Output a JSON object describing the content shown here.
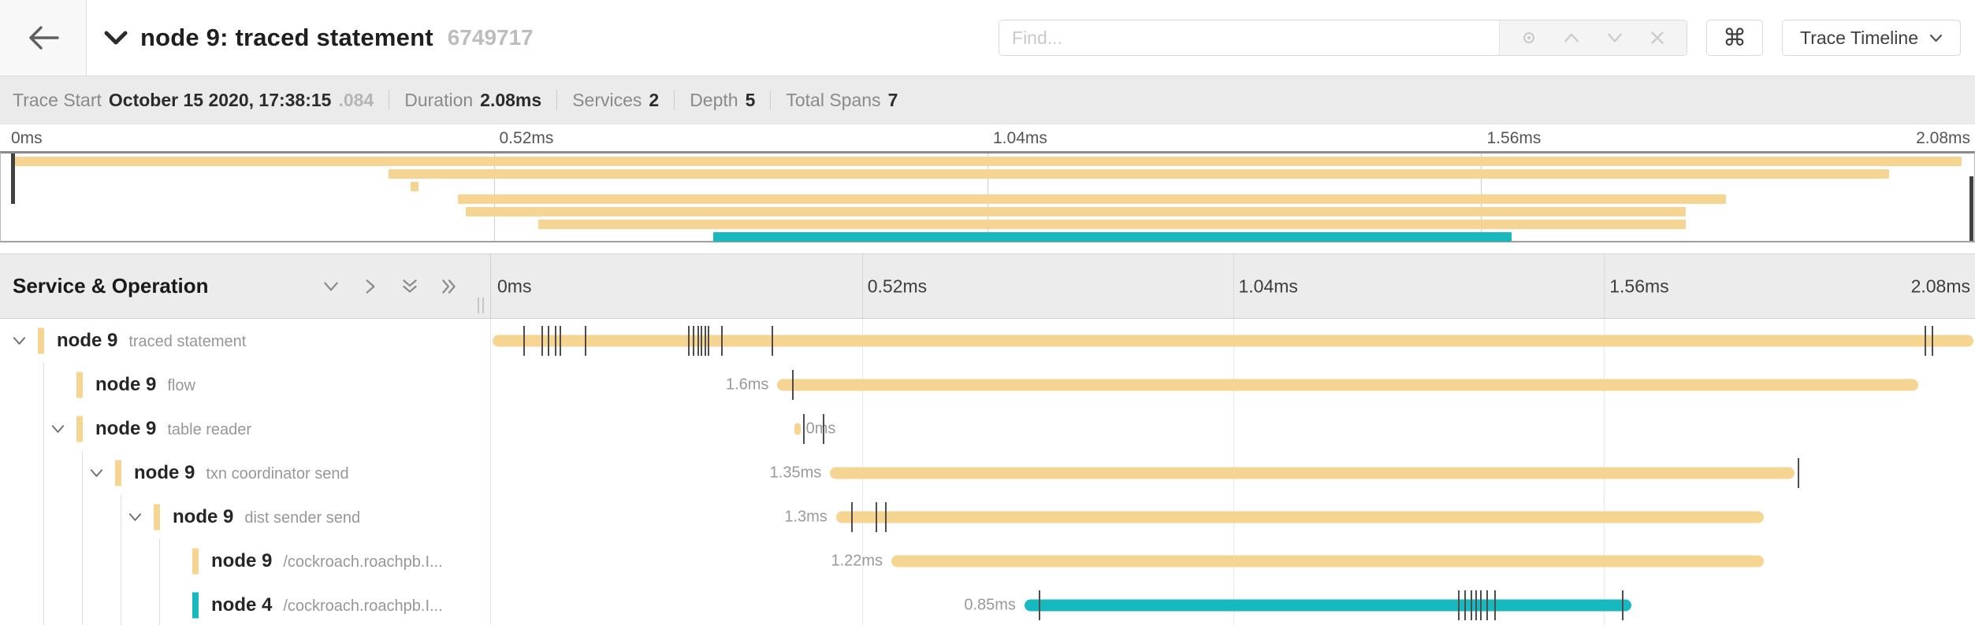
{
  "header": {
    "back_icon": "arrow-left",
    "collapse_icon": "chevron-down",
    "title": "node 9: traced statement",
    "trace_id": "6749717",
    "find_placeholder": "Find...",
    "find_tools": [
      "locate",
      "up",
      "down",
      "close"
    ],
    "shortcut_label": "⌘",
    "view_label": "Trace Timeline"
  },
  "summary": [
    {
      "label": "Trace Start",
      "value": "October 15 2020, 17:38:15",
      "suffix": ".084"
    },
    {
      "label": "Duration",
      "value": "2.08ms"
    },
    {
      "label": "Services",
      "value": "2"
    },
    {
      "label": "Depth",
      "value": "5"
    },
    {
      "label": "Total Spans",
      "value": "7"
    }
  ],
  "axis_ticks": [
    "0ms",
    "0.52ms",
    "1.04ms",
    "1.56ms",
    "2.08ms"
  ],
  "timeline": {
    "left_header": "Service & Operation",
    "tools": [
      "collapse-one",
      "expand-one",
      "collapse-all",
      "expand-all"
    ]
  },
  "colors": {
    "yellow": "#F5D591",
    "teal": "#17B8BE",
    "tick": "#4d4d4d"
  },
  "spans": [
    {
      "service": "node 9",
      "operation": "traced statement",
      "depth": 0,
      "toggle": "down",
      "color": "yellow",
      "duration": "",
      "label_side": "none",
      "t0": 0.001,
      "t1": 0.999,
      "ticks": [
        0.022,
        0.034,
        0.038,
        0.043,
        0.046,
        0.063,
        0.133,
        0.136,
        0.139,
        0.141,
        0.144,
        0.146,
        0.155,
        0.189,
        0.966,
        0.971
      ]
    },
    {
      "service": "node 9",
      "operation": "flow",
      "depth": 1,
      "toggle": "none",
      "color": "yellow",
      "duration": "1.6ms",
      "label_side": "left",
      "t0": 0.193,
      "t1": 0.962,
      "ticks": [
        0.203
      ]
    },
    {
      "service": "node 9",
      "operation": "table reader",
      "depth": 1,
      "toggle": "down",
      "color": "yellow",
      "duration": "0ms",
      "label_side": "right",
      "t0": 0.2045,
      "t1": 0.2085,
      "ticks": [
        0.2105,
        0.2235
      ]
    },
    {
      "service": "node 9",
      "operation": "txn coordinator send",
      "depth": 2,
      "toggle": "down",
      "color": "yellow",
      "duration": "1.35ms",
      "label_side": "left",
      "t0": 0.2285,
      "t1": 0.8785,
      "ticks": [
        0.8805
      ]
    },
    {
      "service": "node 9",
      "operation": "dist sender send",
      "depth": 3,
      "toggle": "down",
      "color": "yellow",
      "duration": "1.3ms",
      "label_side": "left",
      "t0": 0.2325,
      "t1": 0.8577,
      "ticks": [
        0.2427,
        0.2592,
        0.2655
      ]
    },
    {
      "service": "node 9",
      "operation": "/cockroach.roachpb.I...",
      "depth": 4,
      "toggle": "none",
      "color": "yellow",
      "duration": "1.22ms",
      "label_side": "left",
      "t0": 0.2698,
      "t1": 0.8577,
      "ticks": []
    },
    {
      "service": "node 4",
      "operation": "/cockroach.roachpb.I...",
      "depth": 4,
      "toggle": "none",
      "color": "teal",
      "duration": "0.85ms",
      "label_side": "left",
      "t0": 0.3595,
      "t1": 0.7685,
      "ticks": [
        0.3691,
        0.6516,
        0.6559,
        0.6601,
        0.6633,
        0.6665,
        0.6707,
        0.676,
        0.7621
      ]
    }
  ]
}
